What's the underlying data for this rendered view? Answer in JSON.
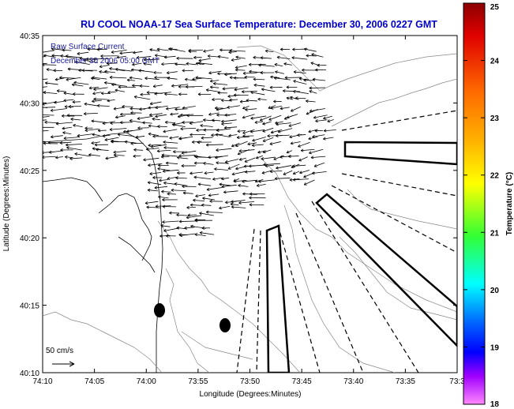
{
  "chart_data": {
    "type": "map",
    "title": "RU COOL  NOAA-17  Sea Surface Temperature:  December 30, 2006 0227 GMT",
    "overlay_lines": [
      "Raw Surface Current",
      "December 30 2006 05:00 GMT"
    ],
    "xlabel": "Longitude (Degrees:Minutes)",
    "ylabel": "Latitude (Degrees:Minutes)",
    "x_ticks": [
      "74:10",
      "74:05",
      "74:00",
      "73:55",
      "73:50",
      "73:45",
      "73:40",
      "73:35",
      "73:3"
    ],
    "y_ticks": [
      "40:35",
      "40:30",
      "40:25",
      "40:20",
      "40:15",
      "40:10"
    ],
    "xlim_minutes_west": [
      10,
      -20
    ],
    "ylim_minutes": [
      10,
      35
    ],
    "scale_label": "50 cm/s",
    "colorbar": {
      "label": "Temperature (°C)",
      "ticks": [
        "25",
        "24",
        "23",
        "22",
        "21",
        "20",
        "19",
        "18"
      ],
      "range": [
        18,
        25
      ],
      "colors": [
        "#8b0000",
        "#ff0000",
        "#ffa500",
        "#ffff00",
        "#00ff00",
        "#00ffff",
        "#0000ff",
        "#ff66ff"
      ]
    },
    "grid": false
  }
}
